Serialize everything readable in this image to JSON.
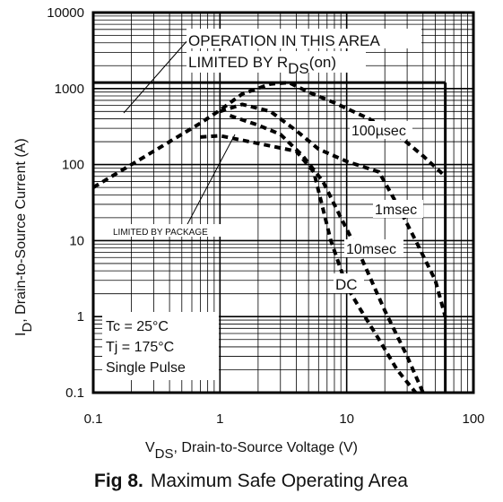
{
  "chart_data": {
    "type": "line",
    "title": "",
    "xlabel": {
      "main": "V",
      "sub": "DS",
      "rest": ", Drain-to-Source Voltage (V)"
    },
    "ylabel": {
      "main": "I",
      "sub": "D",
      "rest": ",  Drain-to-Source Current (A)"
    },
    "xscale": "log",
    "yscale": "log",
    "xlim": [
      0.1,
      100
    ],
    "ylim": [
      0.1,
      10000
    ],
    "xticks": [
      "0.1",
      "1",
      "10",
      "100"
    ],
    "yticks": [
      "0.1",
      "1",
      "10",
      "100",
      "1000",
      "10000"
    ],
    "grid": true,
    "caption": {
      "bold": "Fig 8.",
      "text": "Maximum Safe Operating Area"
    },
    "annotations": {
      "rds_line1": "OPERATION IN THIS AREA",
      "rds_line2": "LIMITED BY R",
      "rds_sub": "DS",
      "rds_paren": "(on)",
      "package": "LIMITED BY PACKAGE",
      "s100us": "100µsec",
      "s1ms": "1msec",
      "s10ms": "10msec",
      "sdc": "DC"
    },
    "conditions": [
      "Tc = 25°C",
      "Tj = 175°C",
      "Single Pulse"
    ],
    "series": [
      {
        "label": "100µsec",
        "x": [
          0.1,
          0.3,
          0.7,
          1.0,
          1.5,
          2.5,
          3.5,
          5.0,
          8.0,
          15.0,
          25.0,
          40.0,
          60.0
        ],
        "y": [
          50,
          150,
          350,
          520,
          850,
          1150,
          1200,
          900,
          650,
          400,
          250,
          130,
          70
        ]
      },
      {
        "label": "1msec",
        "x": [
          1.0,
          1.5,
          2.5,
          4.0,
          6.0,
          10.0,
          18.0,
          25.0,
          35.0,
          50.0,
          60.0
        ],
        "y": [
          500,
          620,
          500,
          280,
          160,
          110,
          80,
          30,
          10,
          3,
          1
        ]
      },
      {
        "label": "10msec",
        "x": [
          1.2,
          2.0,
          3.0,
          4.5,
          6.5,
          9.0,
          13.0,
          20.0,
          30.0,
          40.0
        ],
        "y": [
          440,
          330,
          250,
          130,
          60,
          20,
          6,
          1.2,
          0.3,
          0.1
        ]
      },
      {
        "label": "DC",
        "x": [
          0.7,
          1.0,
          2.0,
          4.0,
          5.5,
          7.5,
          10.0,
          13.0,
          18.0,
          25.0,
          35.0
        ],
        "y": [
          230,
          240,
          190,
          150,
          80,
          10,
          2.5,
          1.2,
          0.5,
          0.2,
          0.1
        ]
      }
    ],
    "limits": {
      "current_limit": 1200,
      "voltage_limit": 60
    }
  }
}
